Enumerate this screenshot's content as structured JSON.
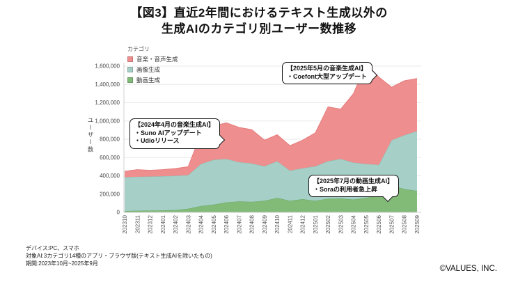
{
  "title": {
    "line1": "【図3】直近2年間におけるテキスト生成以外の",
    "line2": "生成AIのカテゴリ別ユーザー数推移"
  },
  "legend": {
    "title": "カテゴリ",
    "items": [
      {
        "label": "音楽・音声生成",
        "color": "#ee8e8e"
      },
      {
        "label": "画像生成",
        "color": "#a5cfc7"
      },
      {
        "label": "動画生成",
        "color": "#82ba78"
      }
    ]
  },
  "annotations": {
    "a": {
      "line1": "【2024年4月の音楽生成AI】",
      "line2": "・Suno AIアップデート",
      "line3": "・Udioリリース"
    },
    "b": {
      "line1": "【2025年5月の音楽生成AI】",
      "line2": "・Coefont大型アップデート"
    },
    "c": {
      "line1": "【2025年7月の動画生成AI】",
      "line2": "・Soraの利用者急上昇"
    }
  },
  "footer": {
    "line1": "デバイス:PC、スマホ",
    "line2": "対象AI:3カテゴリ14種のアプリ・ブラウザ版(テキスト生成AIを除いたもの)",
    "line3": "期間:2023年10月~2025年9月",
    "copyright": "©VALUES, INC."
  },
  "chart_data": {
    "type": "area",
    "stacked": true,
    "title": "生成AIのカテゴリ別ユーザー数推移(テキスト生成以外)",
    "xlabel": "",
    "ylabel": "ユーザー数",
    "ylim": [
      0,
      1600000
    ],
    "ytick_step": 200000,
    "grid": true,
    "legend_position": "top-left",
    "x": [
      "202310",
      "202311",
      "202312",
      "202401",
      "202402",
      "202403",
      "202404",
      "202405",
      "202406",
      "202407",
      "202408",
      "202409",
      "202410",
      "202411",
      "202412",
      "202501",
      "202502",
      "202503",
      "202504",
      "202505",
      "202506",
      "202507",
      "202508",
      "202509"
    ],
    "series": [
      {
        "id": "video-generation",
        "name": "動画生成",
        "color": "#82ba78",
        "edge": "#69a862",
        "values": [
          15000,
          18000,
          20000,
          22000,
          25000,
          40000,
          70000,
          85000,
          110000,
          120000,
          115000,
          127000,
          158000,
          127000,
          145000,
          127000,
          150000,
          152000,
          140000,
          160000,
          178000,
          295000,
          255000,
          235000
        ]
      },
      {
        "id": "image-generation",
        "name": "画像生成",
        "color": "#a5cfc7",
        "edge": "#8dc0b5",
        "values": [
          370000,
          372000,
          372000,
          373000,
          375000,
          368000,
          460000,
          490000,
          475000,
          430000,
          420000,
          378000,
          402000,
          330000,
          338000,
          378000,
          410000,
          433000,
          405000,
          370000,
          342000,
          495000,
          590000,
          655000
        ]
      },
      {
        "id": "music-voice-generation",
        "name": "音楽・音声生成",
        "color": "#ee8e8e",
        "edge": "#e67c7c",
        "values": [
          65000,
          78000,
          68000,
          73000,
          80000,
          92000,
          330000,
          370000,
          395000,
          380000,
          370000,
          285000,
          290000,
          273000,
          307000,
          365000,
          595000,
          545000,
          755000,
          1095000,
          960000,
          580000,
          595000,
          575000
        ]
      }
    ]
  }
}
